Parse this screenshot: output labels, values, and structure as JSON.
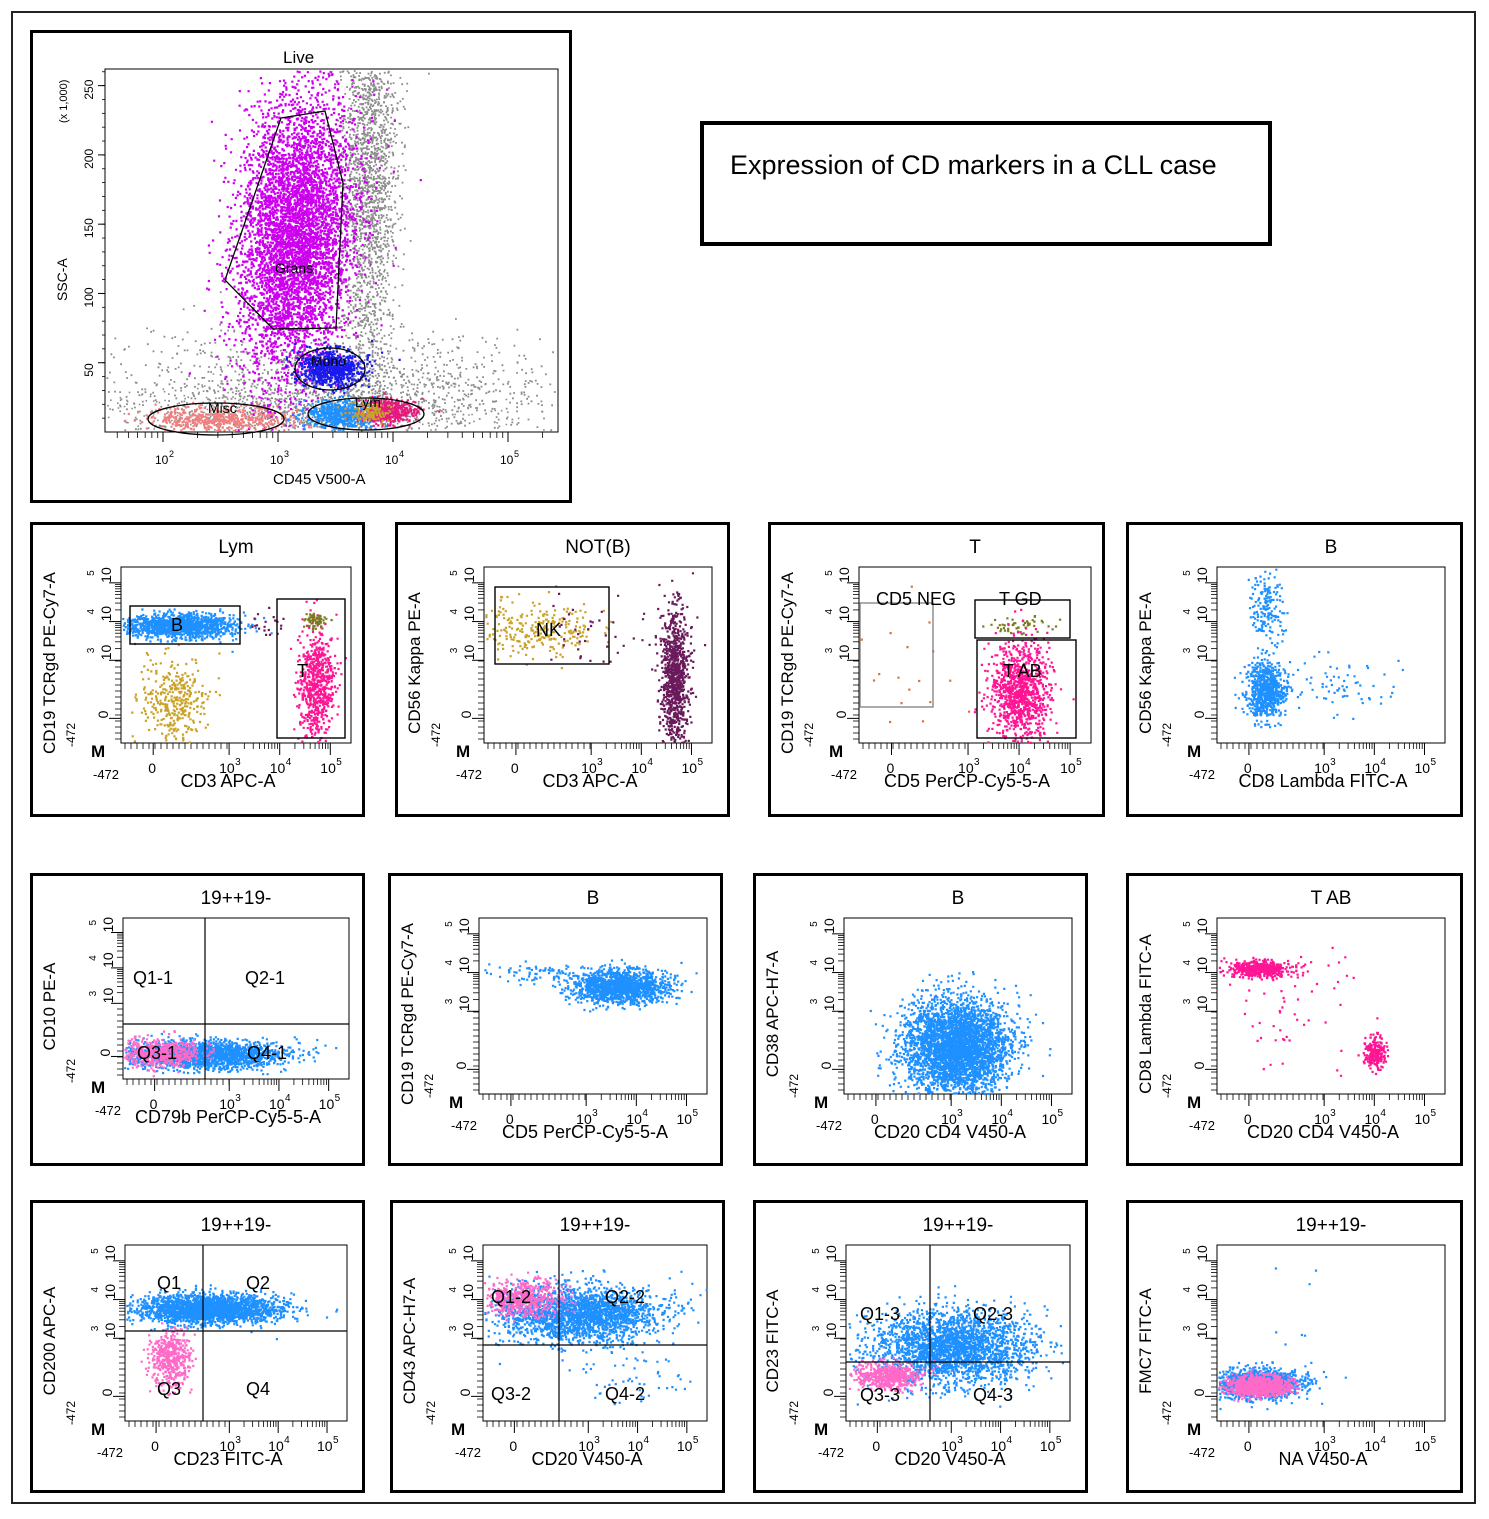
{
  "figure_title": "Expression of CD markers in a CLL case",
  "colors": {
    "gray": "#8c8c8c",
    "magenta": "#cc00ee",
    "blue": "#1a1aee",
    "pink": "#f08080",
    "azure": "#1e90ff",
    "gold": "#c9a227",
    "purple": "#6a1a5a",
    "hotpink": "#ff1493",
    "lightpink": "#ff69c8",
    "orange": "#e0703a",
    "olive": "#7a7a20"
  },
  "m_label": "M",
  "main_plot": {
    "title": "Live",
    "xlabel": "CD45 V500-A",
    "ylabel": "SSC-A",
    "yunit": "(x 1,000)",
    "yticks": [
      "250",
      "200",
      "150",
      "100",
      "50"
    ],
    "xticks": [
      "10",
      "10",
      "10",
      "10"
    ],
    "xtick_exps": [
      "2",
      "3",
      "4",
      "5"
    ],
    "gates": [
      "Grans",
      "Mono",
      "Misc",
      "Lym"
    ]
  },
  "plots": [
    {
      "id": "p1",
      "title": "Lym",
      "xlabel": "CD3 APC-A",
      "ylabel": "CD19 TCRgd PE-Cy7-A",
      "yneg": "-472",
      "xneg": "-472",
      "gates": [
        "B",
        "T"
      ]
    },
    {
      "id": "p2",
      "title": "NOT(B)",
      "xlabel": "CD3 APC-A",
      "ylabel": "CD56 Kappa PE-A",
      "yneg": "-472",
      "xneg": "-472",
      "gates": [
        "NK"
      ]
    },
    {
      "id": "p3",
      "title": "T",
      "xlabel": "CD5 PerCP-Cy5-5-A",
      "ylabel": "CD19 TCRgd PE-Cy7-A",
      "yneg": "-472",
      "xneg": "-472",
      "gates": [
        "CD5 NEG",
        "T GD",
        "T AB"
      ]
    },
    {
      "id": "p4",
      "title": "B",
      "xlabel": "CD8 Lambda FITC-A",
      "ylabel": "CD56 Kappa PE-A",
      "yneg": "-472",
      "xneg": "-472",
      "gates": []
    },
    {
      "id": "p5",
      "title": "19++19-",
      "xlabel": "CD79b PerCP-Cy5-5-A",
      "ylabel": "CD10 PE-A",
      "yneg": "-472",
      "xneg": "-472",
      "gates": [
        "Q1-1",
        "Q2-1",
        "Q3-1",
        "Q4-1"
      ]
    },
    {
      "id": "p6",
      "title": "B",
      "xlabel": "CD5 PerCP-Cy5-5-A",
      "ylabel": "CD19 TCRgd PE-Cy7-A",
      "yneg": "-472",
      "xneg": "-472",
      "gates": []
    },
    {
      "id": "p7",
      "title": "B",
      "xlabel": "CD20 CD4 V450-A",
      "ylabel": "CD38 APC-H7-A",
      "yneg": "-472",
      "xneg": "-472",
      "gates": []
    },
    {
      "id": "p8",
      "title": "T AB",
      "xlabel": "CD20 CD4 V450-A",
      "ylabel": "CD8 Lambda FITC-A",
      "yneg": "-472",
      "xneg": "-472",
      "gates": []
    },
    {
      "id": "p9",
      "title": "19++19-",
      "xlabel": "CD23 FITC-A",
      "ylabel": "CD200 APC-A",
      "yneg": "-472",
      "xneg": "-472",
      "gates": [
        "Q1",
        "Q2",
        "Q3",
        "Q4"
      ]
    },
    {
      "id": "p10",
      "title": "19++19-",
      "xlabel": "CD20 V450-A",
      "ylabel": "CD43 APC-H7-A",
      "yneg": "-472",
      "xneg": "-472",
      "gates": [
        "Q1-2",
        "Q2-2",
        "Q3-2",
        "Q4-2"
      ]
    },
    {
      "id": "p11",
      "title": "19++19-",
      "xlabel": "CD20 V450-A",
      "ylabel": "CD23 FITC-A",
      "yneg": "-472",
      "xneg": "-472",
      "gates": [
        "Q1-3",
        "Q2-3",
        "Q3-3",
        "Q4-3"
      ]
    },
    {
      "id": "p12",
      "title": "19++19-",
      "xlabel": "NA V450-A",
      "ylabel": "FMC7 FITC-A",
      "yneg": "-472",
      "xneg": "-472",
      "gates": []
    }
  ],
  "log_ticks": {
    "zero": "0",
    "base": "10",
    "exps": [
      "3",
      "4",
      "5"
    ]
  }
}
